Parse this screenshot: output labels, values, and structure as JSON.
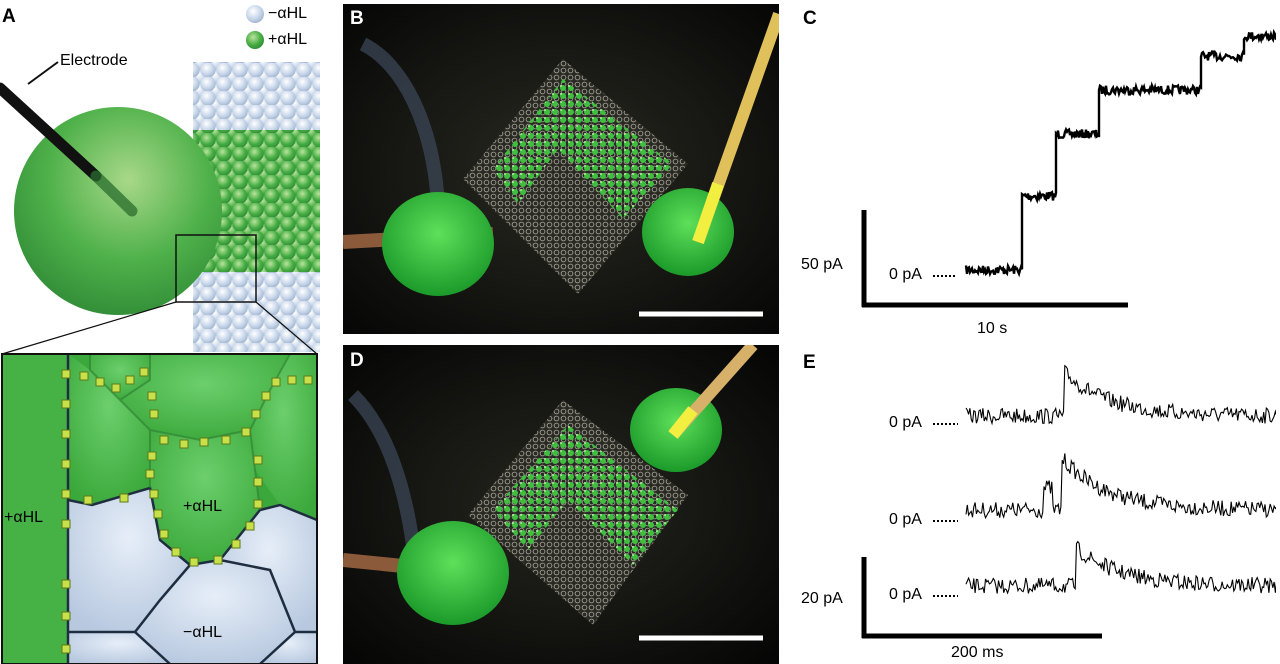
{
  "panels": {
    "a": {
      "letter": "A",
      "legend_minus": "−αHL",
      "legend_plus": "+αHL",
      "electrode_label": "Electrode",
      "inset_left_label": "+αHL",
      "inset_center_label": "+αHL",
      "inset_bottom_label": "−αHL"
    },
    "b": {
      "letter": "B"
    },
    "c": {
      "letter": "C",
      "zero_label": "0 pA",
      "y_scale_label": "50 pA",
      "x_scale_label": "10 s"
    },
    "d": {
      "letter": "D"
    },
    "e": {
      "letter": "E",
      "zero_label_1": "0 pA",
      "zero_label_2": "0 pA",
      "zero_label_3": "0 pA",
      "y_scale_label": "20 pA",
      "x_scale_label": "200 ms"
    }
  },
  "colors": {
    "green": "#3fae3f",
    "light_green": "#6cc46c",
    "membrane_blue": "#c8d6e8",
    "pore_yellow": "#c8e04a",
    "outline": "#1e2e40"
  }
}
